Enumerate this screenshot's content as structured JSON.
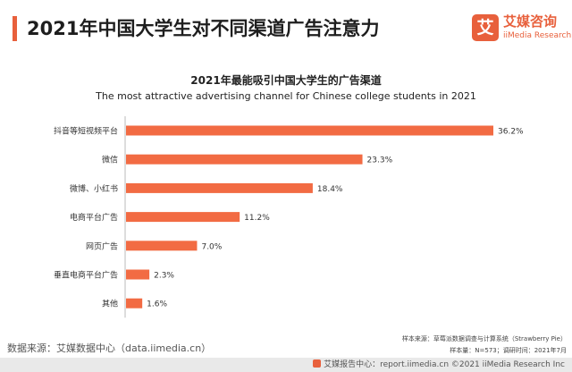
{
  "header": {
    "title": "2021年中国大学生对不同渠道广告注意力",
    "accent_color": "#e8603c"
  },
  "logo": {
    "mark_char": "艾",
    "name_cn": "艾媒咨询",
    "name_en": "iiMedia Research"
  },
  "chart_data": {
    "type": "bar",
    "orientation": "horizontal",
    "title": "2021年最能吸引中国大学生的广告渠道",
    "subtitle": "The most attractive advertising channel for Chinese college students in 2021",
    "categories": [
      "抖音等短视频平台",
      "微信",
      "微博、小红书",
      "电商平台广告",
      "网页广告",
      "垂直电商平台广告",
      "其他"
    ],
    "values": [
      36.2,
      23.3,
      18.4,
      11.2,
      7.0,
      2.3,
      1.6
    ],
    "value_labels": [
      "36.2%",
      "23.3%",
      "18.4%",
      "11.2%",
      "7.0%",
      "2.3%",
      "1.6%"
    ],
    "unit": "%",
    "xlim": [
      0,
      36.2
    ],
    "bar_color": "#f26b43",
    "grid": false,
    "xlabel": "",
    "ylabel": ""
  },
  "footer": {
    "source": "数据来源：艾媒数据中心（data.iimedia.cn）",
    "sample_line1": "样本来源：草莓派数据调查与计算系统（Strawberry Pie）",
    "sample_line2": "样本量：N=573；调研时间：2021年7月",
    "copyright": "艾媒报告中心：report.iimedia.cn   ©2021  iiMedia Research  Inc"
  }
}
